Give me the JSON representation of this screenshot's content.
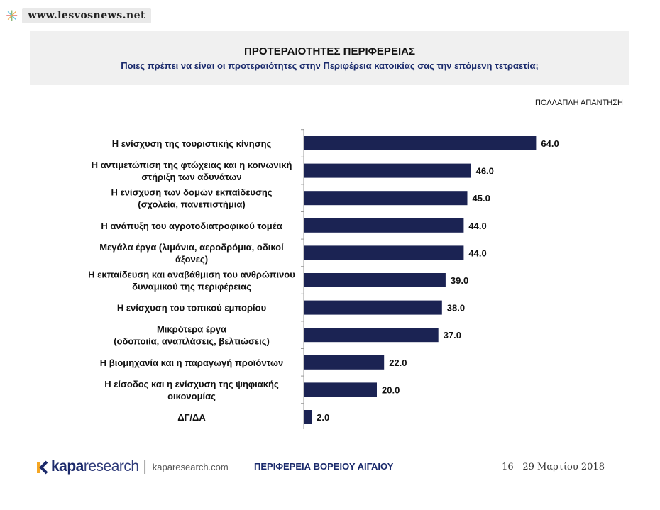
{
  "watermark": {
    "text": "www.lesvosnews.net"
  },
  "header": {
    "title": "ΠΡΟΤΕΡΑΙΟΤΗΤΕΣ ΠΕΡΙΦΕΡΕΙΑΣ",
    "subtitle": "Ποιες πρέπει να είναι οι προτεραιότητες στην Περιφέρεια κατοικίας σας την επόμενη τετραετία;",
    "note": "ΠΟΛΛΑΠΛΗ ΑΠΑΝΤΗΣΗ"
  },
  "chart_data": {
    "type": "bar",
    "orientation": "horizontal",
    "categories": [
      [
        "Η ενίσχυση της τουριστικής κίνησης"
      ],
      [
        "Η αντιμετώπιση της φτώχειας και η κοινωνική",
        "στήριξη των αδυνάτων"
      ],
      [
        "Η ενίσχυση των δομών εκπαίδευσης",
        "(σχολεία, πανεπιστήμια)"
      ],
      [
        "Η ανάπυξη του αγροτοδιατροφικού τομέα"
      ],
      [
        "Μεγάλα έργα (λιμάνια, αεροδρόμια, οδικοί",
        "άξονες)"
      ],
      [
        "Η εκπαίδευση και αναβάθμιση του ανθρώπινου",
        "δυναμικού της περιφέρειας"
      ],
      [
        "Η ενίσχυση του τοπικού εμπορίου"
      ],
      [
        "Μικρότερα έργα",
        "(οδοποιία, αναπλάσεις, βελτιώσεις)"
      ],
      [
        "Η βιομηχανία και η παραγωγή προϊόντων"
      ],
      [
        "Η είσοδος και η ενίσχυση της ψηφιακής",
        "οικονομίας"
      ],
      [
        "ΔΓ/ΔΑ"
      ]
    ],
    "values": [
      64.0,
      46.0,
      45.0,
      44.0,
      44.0,
      39.0,
      38.0,
      37.0,
      22.0,
      20.0,
      2.0
    ],
    "value_labels": [
      "64.0",
      "46.0",
      "45.0",
      "44.0",
      "44.0",
      "39.0",
      "38.0",
      "37.0",
      "22.0",
      "20.0",
      "2.0"
    ],
    "xlim": [
      0,
      100
    ],
    "grid": false,
    "bar_color": "#1b2353"
  },
  "footer": {
    "brand_bold": "kapa",
    "brand_rest": "research",
    "separator": "|",
    "url": "kaparesearch.com",
    "region": "ΠΕΡΙΦΕΡΕΙΑ ΒΟΡΕΙΟΥ ΑΙΓΑΙΟΥ",
    "date": "16 - 29 Μαρτίου 2018"
  }
}
